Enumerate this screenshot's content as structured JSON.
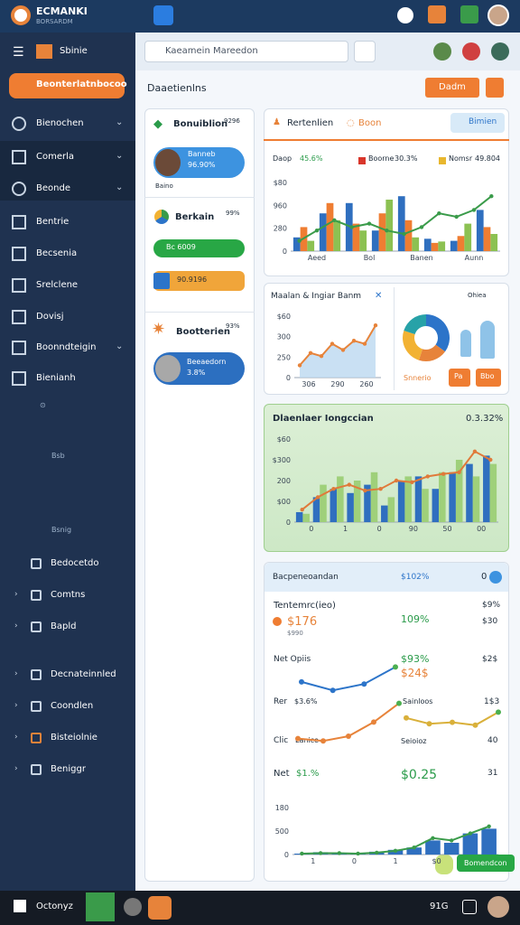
{
  "topbar": {
    "brand": "ECMANKI",
    "brand_sub": "BORSARDM"
  },
  "sidebar": {
    "title": "Sbinie",
    "cta": "Beonterlatnbocoo",
    "items": [
      "Bienochen",
      "Comerla",
      "Beonde",
      "Bentrie",
      "Becsenia",
      "Srelclene",
      "Dovisj",
      "Boonndteigin",
      "Bienianh"
    ],
    "note1": "Bsb",
    "note2": "Bsnig",
    "sub_items": [
      "Bedocetdo",
      "Comtns",
      "Bapld",
      "Decnateinnled",
      "Coondlen",
      "Bisteiolnie",
      "Beniggr"
    ]
  },
  "search": {
    "placeholder": "Kaeamein Mareedon"
  },
  "page": {
    "title": "Daaetienlns",
    "button": "Dadm"
  },
  "cards": [
    {
      "title": "Bonuiblion",
      "stat": "9296",
      "pill_label": "Banneb",
      "pill_value": "96.90%",
      "footer": "Baino"
    },
    {
      "title": "Berkain",
      "stat": "99%",
      "pill_green": "Bc 6009",
      "pill_orange": "90.9196"
    },
    {
      "title": "Bootterien",
      "stat": "93%",
      "pill_label": "Beeaedorn",
      "pill_value": "3.8%"
    }
  ],
  "revenue": {
    "title": "Rertenlien",
    "tab": "Boon",
    "button": "Bimien",
    "legend": [
      {
        "name": "Daop",
        "value": "45.6%",
        "color": "#1e4f8c"
      },
      {
        "name": "Boorne",
        "value": "30.3%",
        "color": "#d9362b"
      },
      {
        "name": "Nomsr",
        "value": "49.804",
        "color": "#e8b72e"
      }
    ],
    "chart": {
      "ylim": [
        0,
        100
      ],
      "y_labels": [
        "$80",
        "960",
        "280",
        "0"
      ],
      "x_labels": [
        "Aeed",
        "Bol",
        "Banen",
        "Aunn"
      ],
      "series": [
        {
          "kind": "bar",
          "color": "#2f6fbf",
          "values": [
            20,
            55,
            70,
            30,
            80,
            18,
            15,
            60
          ]
        },
        {
          "kind": "bar",
          "color": "#ef7d32",
          "values": [
            35,
            70,
            40,
            55,
            45,
            12,
            22,
            35
          ]
        },
        {
          "kind": "bar",
          "color": "#8cc152",
          "values": [
            15,
            45,
            30,
            75,
            20,
            14,
            40,
            25
          ]
        },
        {
          "kind": "line",
          "color": "#3a9b4a",
          "values": [
            15,
            30,
            45,
            35,
            40,
            30,
            25,
            35,
            55,
            50,
            60,
            80
          ]
        }
      ]
    }
  },
  "trend": {
    "title": "Maalan & Ingiar Banm",
    "chart": {
      "ylim": [
        0,
        100
      ],
      "y_labels": [
        "$60",
        "300",
        "250",
        "0"
      ],
      "x_labels": [
        "306",
        "290",
        "260"
      ],
      "series": [
        {
          "kind": "area",
          "color": "#e7833a",
          "values": [
            20,
            40,
            35,
            55,
            45,
            60,
            55,
            85
          ]
        }
      ]
    },
    "donut": {
      "values": [
        35,
        20,
        25,
        20
      ],
      "colors": [
        "#2c74c9",
        "#e7833a",
        "#f2b233",
        "#27a2a8"
      ]
    },
    "legend": "Ohiea",
    "caption": "Snnerio",
    "buttons": [
      "Pa",
      "Bbo"
    ]
  },
  "growth": {
    "title": "Dlaenlaer Iongccian",
    "stat": "0.3.32%",
    "chart": {
      "ylim": [
        0,
        100
      ],
      "y_labels": [
        "$60",
        "$300",
        "200",
        "$00",
        "0"
      ],
      "x_labels": [
        "0",
        "1",
        "0",
        "90",
        "50",
        "00"
      ],
      "series": [
        {
          "kind": "bar",
          "color": "#2f6fbf",
          "values": [
            12,
            30,
            40,
            35,
            45,
            20,
            50,
            55,
            40,
            60,
            70,
            80
          ]
        },
        {
          "kind": "bar",
          "color": "#9fd07a",
          "values": [
            10,
            45,
            55,
            50,
            60,
            30,
            55,
            40,
            60,
            75,
            55,
            70
          ]
        },
        {
          "kind": "line",
          "color": "#e07a3a",
          "values": [
            15,
            30,
            40,
            45,
            38,
            40,
            50,
            48,
            55,
            58,
            60,
            85,
            75
          ]
        }
      ]
    }
  },
  "summary": {
    "title": "Bacpeneoandan",
    "stat": "$102%",
    "badge": "0",
    "texts": [
      "Tentemrc(ieo)",
      "$9%",
      "$176",
      "$990",
      "109%",
      "$30",
      "Net Opiis",
      "$93%",
      "$24$",
      "$2$",
      "Rer",
      "$3.6%",
      "Sainloos",
      "1$3",
      "Clic",
      "Lanice",
      "Seioioz",
      "40",
      "Net",
      "$1.%",
      "$0.25",
      "31",
      "Bomendcon"
    ],
    "lines": [
      {
        "color": "#2c74c9",
        "values": [
          45,
          25,
          40,
          80
        ]
      },
      {
        "color": "#e7833a",
        "values": [
          20,
          15,
          25,
          55,
          95
        ]
      },
      {
        "color": "#d9b03a",
        "values": [
          60,
          40,
          45,
          35,
          80
        ]
      }
    ],
    "chart": {
      "ylim": [
        0,
        100
      ],
      "y_labels": [
        "180",
        "500",
        "0"
      ],
      "x_labels": [
        "1",
        "0",
        "1",
        "$0",
        "1"
      ],
      "series": [
        {
          "kind": "bar",
          "color": "#2f6fbf",
          "values": [
            2,
            5,
            3,
            2,
            6,
            10,
            15,
            30,
            25,
            45,
            55
          ]
        },
        {
          "kind": "line",
          "color": "#3a9b4a",
          "values": [
            2,
            3,
            3,
            2,
            4,
            8,
            15,
            35,
            30,
            45,
            60
          ]
        }
      ]
    }
  },
  "taskbar": {
    "label": "Octonyz",
    "time": "91G"
  }
}
